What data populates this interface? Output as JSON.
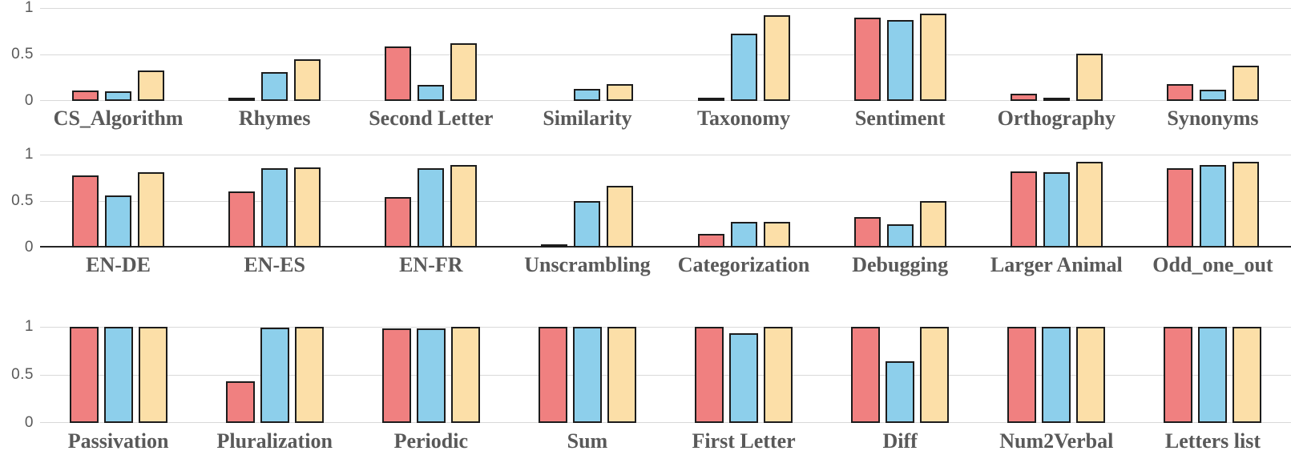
{
  "chart_data": {
    "type": "bar",
    "title": "",
    "legend": null,
    "ylim": [
      0,
      1
    ],
    "ytick_labels": [
      "1",
      "0.5",
      "0"
    ],
    "grid": true,
    "series_names": [
      "series-1-red",
      "series-2-blue",
      "series-3-cream"
    ],
    "colors": {
      "series_fills": [
        "#F08080",
        "#8DCFEB",
        "#FCDFA8"
      ],
      "bar_border": "#1C1C1C",
      "gridline": "#D9D9D9",
      "axis_dark": "#262626",
      "text": "#595959"
    },
    "rows": [
      {
        "categories": [
          "CS_Algorithm",
          "Rhymes",
          "Second Letter",
          "Similarity",
          "Taxonomy",
          "Sentiment",
          "Orthography",
          "Synonyms"
        ],
        "series": [
          {
            "name": "series-1-red",
            "values": [
              0.11,
              0.01,
              0.59,
              0.0,
              0.03,
              0.9,
              0.08,
              0.18
            ]
          },
          {
            "name": "series-2-blue",
            "values": [
              0.1,
              0.31,
              0.17,
              0.13,
              0.72,
              0.87,
              0.03,
              0.12
            ]
          },
          {
            "name": "series-3-cream",
            "values": [
              0.33,
              0.45,
              0.62,
              0.18,
              0.92,
              0.94,
              0.51,
              0.38
            ]
          }
        ]
      },
      {
        "categories": [
          "EN-DE",
          "EN-ES",
          "EN-FR",
          "Unscrambling",
          "Categorization",
          "Debugging",
          "Larger Animal",
          "Odd_one_out"
        ],
        "series": [
          {
            "name": "series-1-red",
            "values": [
              0.78,
              0.6,
              0.54,
              0.01,
              0.15,
              0.33,
              0.82,
              0.85
            ]
          },
          {
            "name": "series-2-blue",
            "values": [
              0.56,
              0.85,
              0.85,
              0.5,
              0.28,
              0.25,
              0.81,
              0.89
            ]
          },
          {
            "name": "series-3-cream",
            "values": [
              0.81,
              0.86,
              0.89,
              0.66,
              0.28,
              0.5,
              0.92,
              0.92
            ]
          }
        ]
      },
      {
        "categories": [
          "Passivation",
          "Pluralization",
          "Periodic",
          "Sum",
          "First Letter",
          "Diff",
          "Num2Verbal",
          "Letters list"
        ],
        "series": [
          {
            "name": "series-1-red",
            "values": [
              1.0,
              0.43,
              0.98,
              1.0,
              1.0,
              1.0,
              1.0,
              1.0
            ]
          },
          {
            "name": "series-2-blue",
            "values": [
              1.0,
              0.99,
              0.98,
              1.0,
              0.93,
              0.64,
              1.0,
              1.0
            ]
          },
          {
            "name": "series-3-cream",
            "values": [
              1.0,
              1.0,
              1.0,
              1.0,
              1.0,
              1.0,
              1.0,
              1.0
            ]
          }
        ]
      }
    ]
  }
}
